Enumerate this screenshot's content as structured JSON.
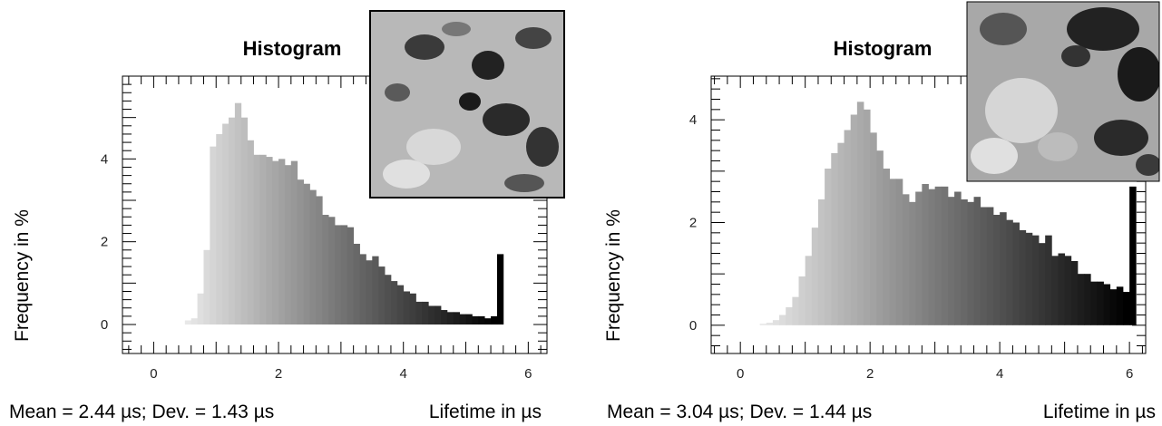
{
  "chart_data": [
    {
      "type": "bar",
      "title": "Histogram",
      "ylabel": "Frequency in %",
      "xlabel": "Lifetime in µs",
      "stats": "Mean = 2.44 µs; Dev. = 1.43 µs",
      "xlim": [
        -0.5,
        6.3
      ],
      "ylim": [
        -0.7,
        6.0
      ],
      "xticks": [
        "0",
        "2",
        "4",
        "6"
      ],
      "xtick_values": [
        0,
        2,
        4,
        6
      ],
      "yticks": [
        "0",
        "2",
        "4"
      ],
      "ytick_values": [
        0,
        2,
        4
      ],
      "bin_start": 0.5,
      "bin_width": 0.1,
      "values": [
        0.1,
        0.15,
        0.75,
        1.8,
        4.3,
        4.6,
        4.85,
        5.0,
        5.35,
        5.0,
        4.45,
        4.1,
        4.1,
        4.05,
        3.95,
        4.0,
        3.85,
        3.95,
        3.5,
        3.4,
        3.25,
        3.1,
        2.65,
        2.6,
        2.4,
        2.4,
        2.35,
        1.95,
        1.7,
        1.55,
        1.65,
        1.4,
        1.2,
        1.05,
        0.95,
        0.8,
        0.75,
        0.55,
        0.55,
        0.45,
        0.45,
        0.35,
        0.3,
        0.3,
        0.25,
        0.25,
        0.2,
        0.2,
        0.15,
        0.2,
        1.7
      ],
      "highlight_last": true
    },
    {
      "type": "bar",
      "title": "Histogram",
      "ylabel": "Frequency in %",
      "xlabel": "Lifetime in µs",
      "stats": "Mean = 3.04 µs; Dev. = 1.44 µs",
      "xlim": [
        -0.45,
        6.25
      ],
      "ylim": [
        -0.55,
        4.85
      ],
      "xticks": [
        "0",
        "2",
        "4",
        "6"
      ],
      "xtick_values": [
        0,
        2,
        4,
        6
      ],
      "yticks": [
        "0",
        "2",
        "4"
      ],
      "ytick_values": [
        0,
        2,
        4
      ],
      "bin_start": 0.3,
      "bin_width": 0.1,
      "values": [
        0.03,
        0.05,
        0.1,
        0.2,
        0.35,
        0.55,
        0.95,
        1.35,
        1.9,
        2.45,
        3.05,
        3.35,
        3.55,
        3.8,
        4.1,
        4.35,
        4.2,
        3.75,
        3.4,
        3.05,
        2.85,
        2.85,
        2.55,
        2.4,
        2.6,
        2.75,
        2.65,
        2.7,
        2.7,
        2.5,
        2.6,
        2.45,
        2.4,
        2.5,
        2.3,
        2.3,
        2.15,
        2.2,
        2.05,
        2.0,
        1.85,
        1.8,
        1.75,
        1.6,
        1.75,
        1.35,
        1.4,
        1.35,
        1.25,
        1.0,
        1.0,
        0.85,
        0.85,
        0.8,
        0.7,
        0.75,
        0.65,
        2.7
      ],
      "highlight_last": true
    }
  ]
}
